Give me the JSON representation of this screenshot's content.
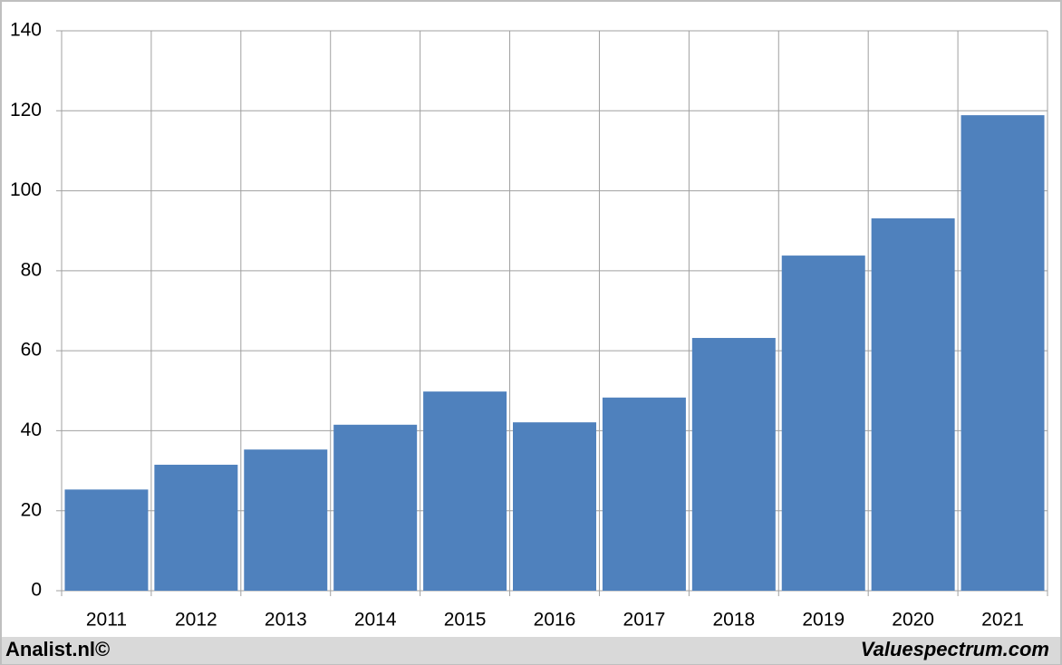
{
  "chart_data": {
    "type": "bar",
    "categories": [
      "2011",
      "2012",
      "2013",
      "2014",
      "2015",
      "2016",
      "2017",
      "2018",
      "2019",
      "2020",
      "2021"
    ],
    "values": [
      25.3,
      31.5,
      35.3,
      41.5,
      49.8,
      42.1,
      48.3,
      63.2,
      83.8,
      93.1,
      118.9
    ],
    "color": "#4f81bd",
    "ylim": [
      0,
      140
    ],
    "yticks": [
      0,
      20,
      40,
      60,
      80,
      100,
      120,
      140
    ],
    "grid": true
  },
  "footer": {
    "left": "Analist.nl©",
    "right": "Valuespectrum.com"
  }
}
